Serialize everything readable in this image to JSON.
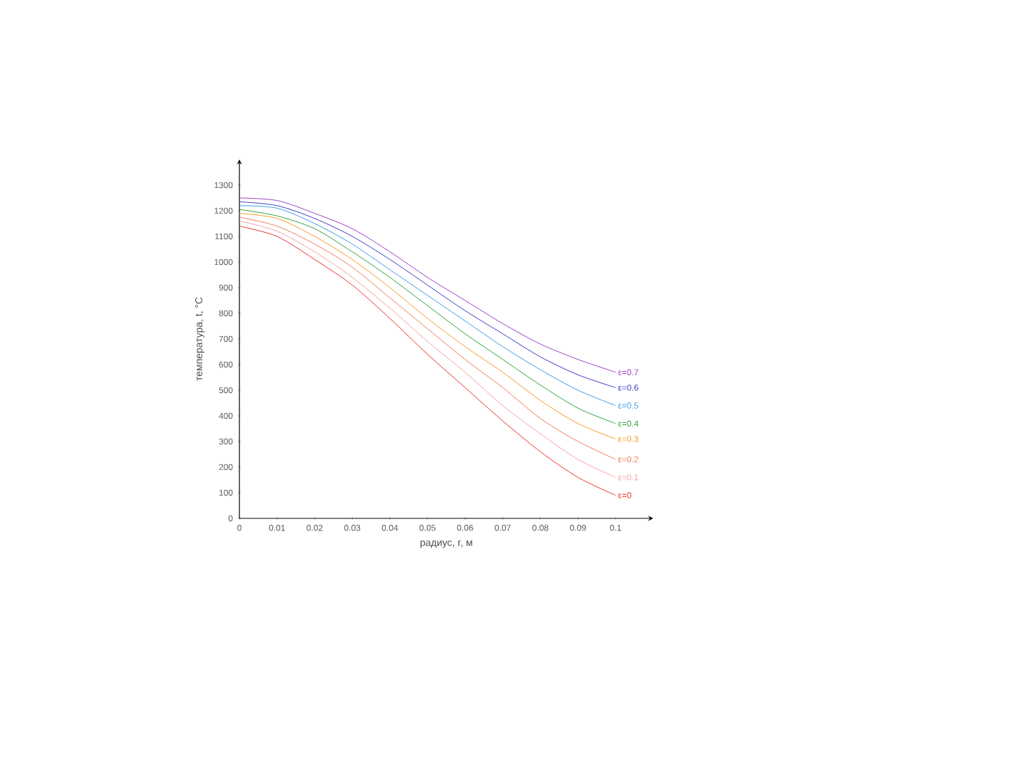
{
  "chart_data": {
    "type": "line",
    "xlabel": "радиус, r, м",
    "ylabel": "температура, t, °C",
    "x": [
      0,
      0.01,
      0.02,
      0.03,
      0.04,
      0.05,
      0.06,
      0.07,
      0.08,
      0.09,
      0.1
    ],
    "series": [
      {
        "name": "ε=0.7",
        "color": "#9b3fc4",
        "values": [
          1250,
          1240,
          1190,
          1130,
          1040,
          940,
          850,
          760,
          680,
          620,
          570
        ]
      },
      {
        "name": "ε=0.6",
        "color": "#3a3ac8",
        "values": [
          1235,
          1220,
          1170,
          1100,
          1010,
          910,
          810,
          720,
          630,
          560,
          510
        ]
      },
      {
        "name": "ε=0.5",
        "color": "#3b9be8",
        "values": [
          1220,
          1210,
          1150,
          1070,
          970,
          870,
          770,
          670,
          580,
          500,
          440
        ]
      },
      {
        "name": "ε=0.4",
        "color": "#2ea33a",
        "values": [
          1205,
          1180,
          1130,
          1040,
          940,
          830,
          720,
          620,
          520,
          430,
          370
        ]
      },
      {
        "name": "ε=0.3",
        "color": "#f59a1c",
        "values": [
          1190,
          1170,
          1100,
          1010,
          900,
          780,
          670,
          570,
          460,
          370,
          310
        ]
      },
      {
        "name": "ε=0.2",
        "color": "#f07a5a",
        "values": [
          1175,
          1140,
          1070,
          980,
          860,
          740,
          620,
          510,
          390,
          300,
          230
        ]
      },
      {
        "name": "ε=0.1",
        "color": "#f5a0a8",
        "values": [
          1160,
          1120,
          1040,
          940,
          820,
          690,
          570,
          440,
          330,
          230,
          160
        ]
      },
      {
        "name": "ε=0",
        "color": "#e8302a",
        "values": [
          1140,
          1100,
          1010,
          910,
          780,
          640,
          510,
          380,
          260,
          160,
          90
        ]
      }
    ],
    "xlim": [
      0,
      0.11
    ],
    "ylim": [
      0,
      1400
    ],
    "xticks": [
      0,
      0.01,
      0.02,
      0.03,
      0.04,
      0.05,
      0.06,
      0.07,
      0.08,
      0.09,
      0.1
    ],
    "yticks": [
      0,
      100,
      200,
      300,
      400,
      500,
      600,
      700,
      800,
      900,
      1000,
      1100,
      1200,
      1300
    ],
    "marker": "none",
    "line_style": "solid"
  }
}
